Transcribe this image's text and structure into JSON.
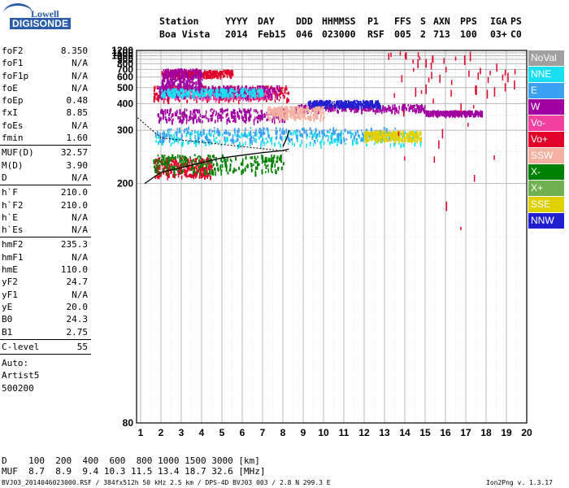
{
  "logo": {
    "top": "Lowell",
    "bottom": "DIGISONDE"
  },
  "header": {
    "cols": [
      {
        "h": "Station",
        "v": "Boa Vista"
      },
      {
        "h": "YYYY",
        "v": "2014"
      },
      {
        "h": "DAY",
        "v": "Feb15"
      },
      {
        "h": "DDD",
        "v": "046"
      },
      {
        "h": "HHMMSS",
        "v": "023000"
      },
      {
        "h": "P1",
        "v": "RSF"
      },
      {
        "h": "FFS",
        "v": "005"
      },
      {
        "h": "S",
        "v": "2"
      },
      {
        "h": "AXN",
        "v": "713"
      },
      {
        "h": "PPS",
        "v": "100"
      },
      {
        "h": "IGA",
        "v": "03+"
      },
      {
        "h": "PS",
        "v": "C0"
      }
    ]
  },
  "params": [
    {
      "group": [
        {
          "label": "foF2",
          "value": "8.350"
        },
        {
          "label": "foF1",
          "value": "N/A"
        },
        {
          "label": "foF1p",
          "value": "N/A"
        },
        {
          "label": "foE",
          "value": "N/A"
        },
        {
          "label": "foEp",
          "value": "0.48"
        },
        {
          "label": "fxI",
          "value": "8.85"
        },
        {
          "label": "foEs",
          "value": "N/A"
        },
        {
          "label": "fmin",
          "value": "1.60"
        }
      ]
    },
    {
      "group": [
        {
          "label": "MUF(D)",
          "value": "32.57"
        },
        {
          "label": "M(D)",
          "value": "3.90"
        },
        {
          "label": "D",
          "value": "N/A"
        }
      ]
    },
    {
      "group": [
        {
          "label": "h`F",
          "value": "210.0"
        },
        {
          "label": "h`F2",
          "value": "210.0"
        },
        {
          "label": "h`E",
          "value": "N/A"
        },
        {
          "label": "h`Es",
          "value": "N/A"
        }
      ]
    },
    {
      "group": [
        {
          "label": "hmF2",
          "value": "235.3"
        },
        {
          "label": "hmF1",
          "value": "N/A"
        },
        {
          "label": "hmE",
          "value": "110.0"
        },
        {
          "label": "yF2",
          "value": "24.7"
        },
        {
          "label": "yF1",
          "value": "N/A"
        },
        {
          "label": "yE",
          "value": "20.0"
        },
        {
          "label": "B0",
          "value": "24.3"
        },
        {
          "label": "B1",
          "value": "2.75"
        }
      ]
    },
    {
      "group": [
        {
          "label": "C-level",
          "value": "55"
        }
      ]
    }
  ],
  "auto_lines": [
    "Auto:",
    "Artist5",
    "500200"
  ],
  "footer": {
    "d_line": "D    100  200  400  600  800 1000 1500 3000 [km]",
    "muf_line": "MUF  8.7  8.9  9.4 10.3 11.5 13.4 18.7 32.6 [MHz]",
    "file_line": "BVJ03_2014046023000.RSF / 384fx512h 50 kHz 2.5 km / DPS-4D BVJ03 003 / 2.8 N 299.3 E",
    "version": "Ion2Png v. 1.3.17"
  },
  "legend": [
    {
      "label": "NoVal",
      "color": "#a0a0a0"
    },
    {
      "label": "NNE",
      "color": "#19e0f0"
    },
    {
      "label": "E",
      "color": "#3ca0f0"
    },
    {
      "label": "W",
      "color": "#a000a0"
    },
    {
      "label": "Vo-",
      "color": "#f040a0"
    },
    {
      "label": "Vo+",
      "color": "#e0002a"
    },
    {
      "label": "SSW",
      "color": "#f4b0a0"
    },
    {
      "label": "X-",
      "color": "#008000"
    },
    {
      "label": "X+",
      "color": "#70b050"
    },
    {
      "label": "SSE",
      "color": "#e0d000"
    },
    {
      "label": "NNW",
      "color": "#2020d0"
    }
  ],
  "chart_data": {
    "type": "scatter",
    "xlim": [
      0.8,
      20
    ],
    "ylim": [
      80,
      1200
    ],
    "xticks": [
      "1",
      "2",
      "3",
      "4",
      "5",
      "6",
      "7",
      "8",
      "9",
      "10",
      "11",
      "12",
      "13",
      "14",
      "15",
      "16",
      "17",
      "18",
      "19",
      "20"
    ],
    "yticks": [
      "80",
      "200",
      "300",
      "400",
      "500",
      "600",
      "700",
      "800",
      "900",
      "1000",
      "1100",
      "1200"
    ],
    "yscale": "reciprocal",
    "grid": true,
    "legend_position": "right",
    "clusters": [
      {
        "color_index": 3,
        "x": [
          1.8,
          8.2
        ],
        "y": [
          330,
          380
        ]
      },
      {
        "color_index": 3,
        "x": [
          8.5,
          15.0
        ],
        "y": [
          370,
          400
        ]
      },
      {
        "color_index": 10,
        "x": [
          9.2,
          12.8
        ],
        "y": [
          390,
          420
        ]
      },
      {
        "color_index": 1,
        "x": [
          1.7,
          14.8
        ],
        "y": [
          265,
          300
        ]
      },
      {
        "color_index": 2,
        "x": [
          1.7,
          13.5
        ],
        "y": [
          275,
          310
        ]
      },
      {
        "color_index": 5,
        "x": [
          1.6,
          8.3
        ],
        "y": [
          420,
          520
        ]
      },
      {
        "color_index": 4,
        "x": [
          2.0,
          7.5
        ],
        "y": [
          430,
          500
        ]
      },
      {
        "color_index": 3,
        "x": [
          1.8,
          7.8
        ],
        "y": [
          440,
          520
        ]
      },
      {
        "color_index": 1,
        "x": [
          2.0,
          7.0
        ],
        "y": [
          450,
          500
        ]
      },
      {
        "color_index": 9,
        "x": [
          12.0,
          14.8
        ],
        "y": [
          275,
          300
        ]
      },
      {
        "color_index": 6,
        "x": [
          7.2,
          10.0
        ],
        "y": [
          340,
          390
        ]
      },
      {
        "color_index": 3,
        "x": [
          15.0,
          17.8
        ],
        "y": [
          355,
          370
        ]
      },
      {
        "color_index": 5,
        "x": [
          1.7,
          4.5
        ],
        "y": [
          210,
          240
        ]
      },
      {
        "color_index": 7,
        "x": [
          1.6,
          8.0
        ],
        "y": [
          215,
          245
        ]
      },
      {
        "color_index": 5,
        "x": [
          2.0,
          5.5
        ],
        "y": [
          620,
          700
        ]
      },
      {
        "color_index": 3,
        "x": [
          2.0,
          4.0
        ],
        "y": [
          500,
          720
        ]
      },
      {
        "color_index": 5,
        "x": [
          13.0,
          19.5
        ],
        "y": [
          150,
          1200
        ]
      }
    ],
    "traces": [
      {
        "name": "",
        "x": [
          1.2,
          2.0,
          3.0,
          4.0,
          5.0,
          6.0,
          7.0,
          8.0,
          8.3
        ],
        "y": [
          200,
          215,
          222,
          230,
          238,
          243,
          248,
          252,
          255
        ]
      },
      {
        "name": "",
        "x": [
          8.0,
          8.2,
          8.3
        ],
        "y": [
          260,
          280,
          300
        ]
      }
    ]
  }
}
